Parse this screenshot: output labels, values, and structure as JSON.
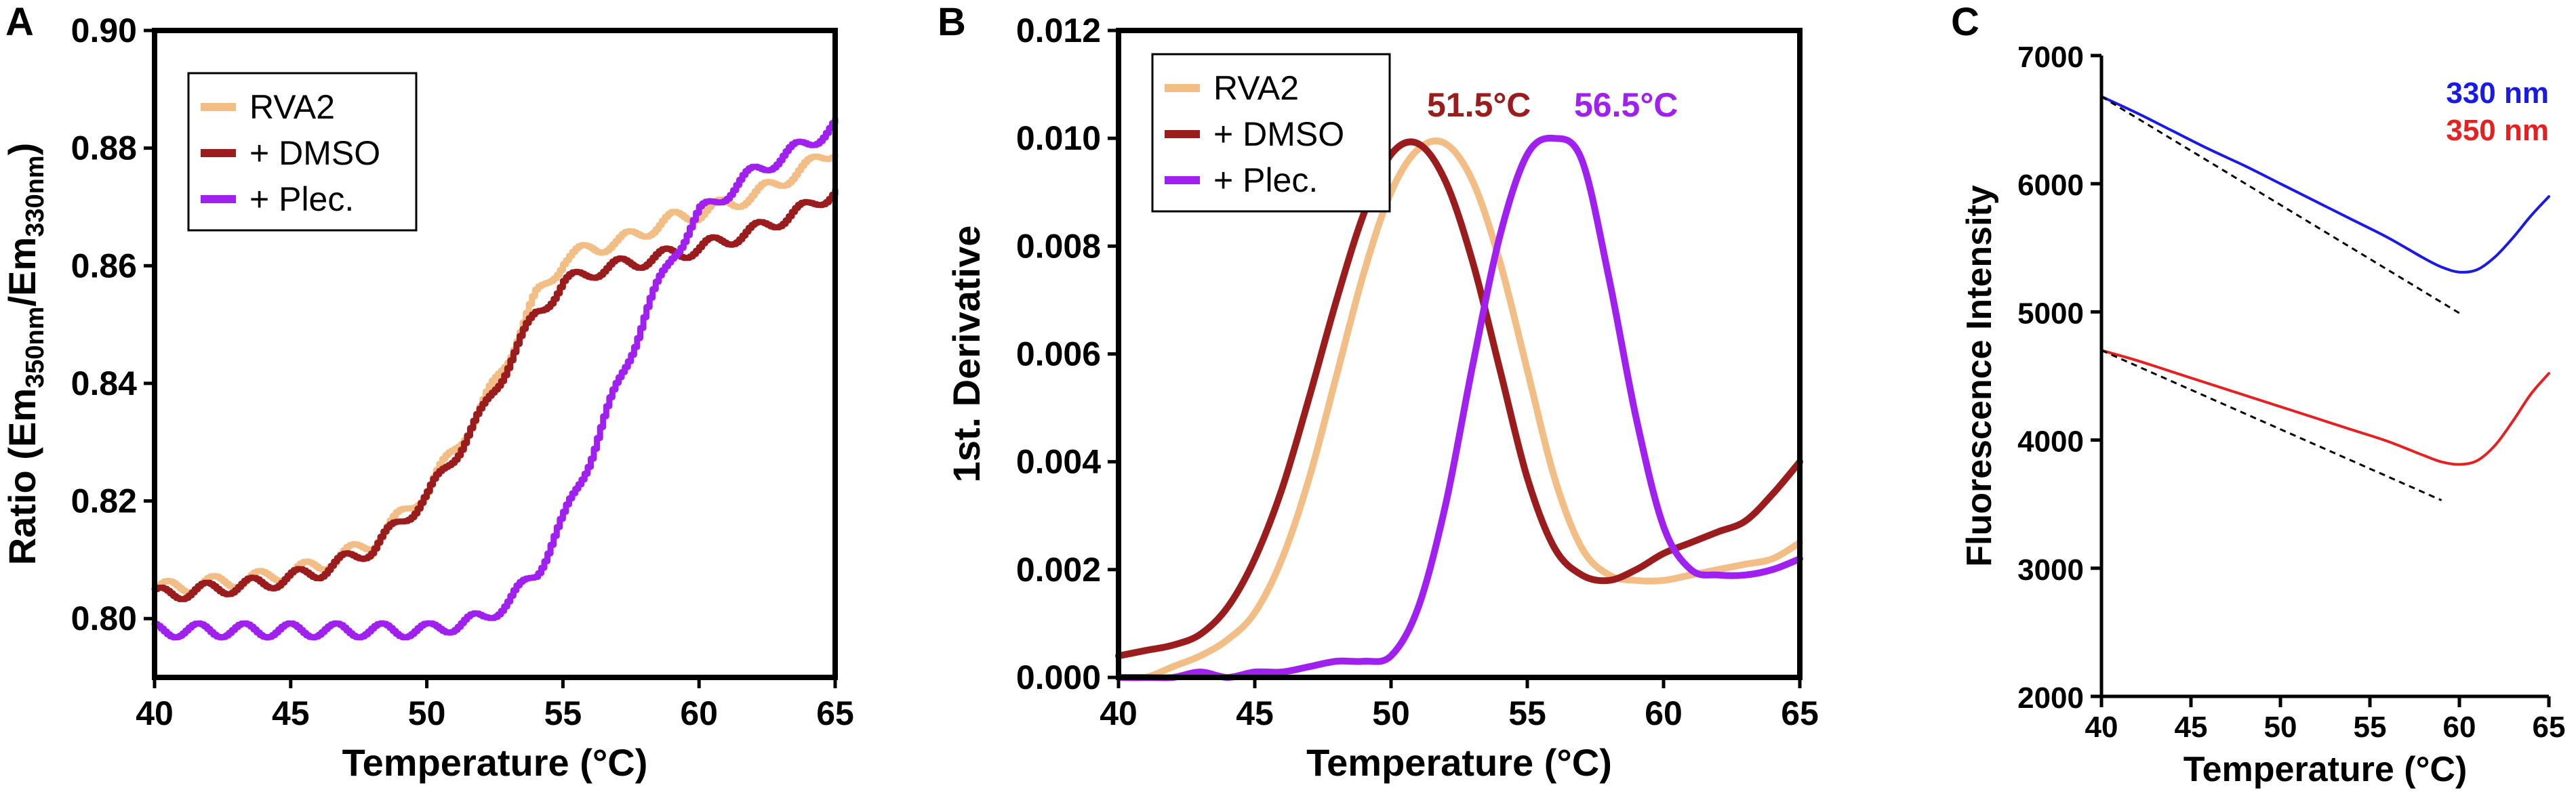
{
  "chart_data": [
    {
      "panel": "A",
      "type": "line",
      "xlabel": "Temperature (°C)",
      "ylabel": {
        "pre": "Ratio (Em",
        "sub1": "350nm",
        "mid": "/Em",
        "sub2": "330nm",
        "post": ")"
      },
      "xlim": [
        40,
        65
      ],
      "ylim": [
        0.79,
        0.9
      ],
      "xticks": [
        "40",
        "45",
        "50",
        "55",
        "60",
        "65"
      ],
      "yticks": [
        "0.80",
        "0.82",
        "0.84",
        "0.86",
        "0.88",
        "0.90"
      ],
      "legend_position": "top-left",
      "grid": false,
      "x": [
        40,
        42,
        44,
        46,
        48,
        50,
        51,
        52,
        53,
        54,
        55,
        56,
        57,
        58,
        59,
        60,
        62,
        64,
        65
      ],
      "series": [
        {
          "name": "RVA2",
          "color": "#F2BE85",
          "values": [
            0.805,
            0.806,
            0.807,
            0.809,
            0.813,
            0.822,
            0.829,
            0.836,
            0.845,
            0.855,
            0.861,
            0.863,
            0.864,
            0.866,
            0.868,
            0.869,
            0.872,
            0.877,
            0.88
          ]
        },
        {
          "name": "+ DMSO",
          "color": "#9B1C1C",
          "values": [
            0.804,
            0.805,
            0.806,
            0.808,
            0.812,
            0.821,
            0.828,
            0.835,
            0.844,
            0.852,
            0.857,
            0.859,
            0.86,
            0.861,
            0.862,
            0.863,
            0.866,
            0.87,
            0.873
          ]
        },
        {
          "name": "+ Plec.",
          "color": "#A020F0",
          "values": [
            0.798,
            0.798,
            0.798,
            0.798,
            0.798,
            0.798,
            0.799,
            0.8,
            0.803,
            0.808,
            0.817,
            0.828,
            0.84,
            0.852,
            0.862,
            0.869,
            0.876,
            0.881,
            0.884
          ]
        }
      ]
    },
    {
      "panel": "B",
      "type": "line",
      "xlabel": "Temperature (°C)",
      "ylabel": "1st. Derivative",
      "xlim": [
        40,
        65
      ],
      "ylim": [
        0,
        0.012
      ],
      "xticks": [
        "40",
        "45",
        "50",
        "55",
        "60",
        "65"
      ],
      "yticks": [
        "0.000",
        "0.002",
        "0.004",
        "0.006",
        "0.008",
        "0.010",
        "0.012"
      ],
      "legend_position": "top-left",
      "grid": false,
      "x": [
        40,
        41,
        42,
        43,
        44,
        45,
        46,
        47,
        48,
        49,
        50,
        51,
        52,
        53,
        54,
        55,
        56,
        57,
        58,
        59,
        60,
        61,
        62,
        63,
        64,
        65
      ],
      "series": [
        {
          "name": "RVA2",
          "color": "#F2BE85",
          "values": [
            0.0,
            0.0,
            0.0002,
            0.0004,
            0.0007,
            0.0012,
            0.0022,
            0.0037,
            0.0056,
            0.0075,
            0.009,
            0.0098,
            0.0099,
            0.0092,
            0.0077,
            0.0057,
            0.0037,
            0.0024,
            0.0019,
            0.0018,
            0.0018,
            0.0019,
            0.002,
            0.0021,
            0.0022,
            0.0025
          ]
        },
        {
          "name": "+ DMSO",
          "color": "#9B1C1C",
          "values": [
            0.0004,
            0.0005,
            0.0006,
            0.0008,
            0.0013,
            0.0022,
            0.0035,
            0.0052,
            0.007,
            0.0086,
            0.0097,
            0.0099,
            0.0092,
            0.0077,
            0.0057,
            0.0037,
            0.0024,
            0.0019,
            0.0018,
            0.002,
            0.0023,
            0.0025,
            0.0027,
            0.0029,
            0.0034,
            0.004
          ]
        },
        {
          "name": "+ Plec.",
          "color": "#A020F0",
          "values": [
            0.0,
            0.0,
            0.0,
            0.0001,
            0.0,
            0.0001,
            0.0001,
            0.0002,
            0.0003,
            0.0003,
            0.0004,
            0.0013,
            0.0032,
            0.0058,
            0.0082,
            0.0097,
            0.01,
            0.0096,
            0.0074,
            0.0048,
            0.0028,
            0.002,
            0.0019,
            0.0019,
            0.002,
            0.0022
          ]
        }
      ],
      "annotations": [
        {
          "text": "51.5°C",
          "color": "#9B1C1C"
        },
        {
          "text": "56.5°C",
          "color": "#A020F0"
        }
      ]
    },
    {
      "panel": "C",
      "type": "line",
      "xlabel": "Temperature (°C)",
      "ylabel": "Fluorescence Intensity",
      "xlim": [
        40,
        65
      ],
      "ylim": [
        2000,
        7000
      ],
      "xticks": [
        "40",
        "45",
        "50",
        "55",
        "60",
        "65"
      ],
      "yticks": [
        "2000",
        "3000",
        "4000",
        "5000",
        "6000",
        "7000"
      ],
      "legend_position": "top-right",
      "grid": false,
      "x": [
        40,
        42,
        44,
        46,
        48,
        50,
        52,
        54,
        56,
        58,
        59,
        60,
        61,
        62,
        63,
        64,
        65
      ],
      "series": [
        {
          "name": "330 nm",
          "color": "#1A1AE6",
          "values": [
            6680,
            6550,
            6410,
            6270,
            6140,
            6000,
            5860,
            5720,
            5580,
            5420,
            5350,
            5310,
            5330,
            5430,
            5580,
            5750,
            5900
          ]
        },
        {
          "name": "350 nm",
          "color": "#E62020",
          "values": [
            4700,
            4620,
            4530,
            4440,
            4350,
            4260,
            4170,
            4080,
            3990,
            3880,
            3830,
            3810,
            3840,
            3960,
            4150,
            4360,
            4520
          ]
        }
      ],
      "fits": [
        {
          "x": [
            40,
            60
          ],
          "values": [
            6680,
            4990
          ]
        },
        {
          "x": [
            40,
            59
          ],
          "values": [
            4700,
            3530
          ]
        }
      ]
    }
  ],
  "panel_labels": [
    "A",
    "B",
    "C"
  ]
}
